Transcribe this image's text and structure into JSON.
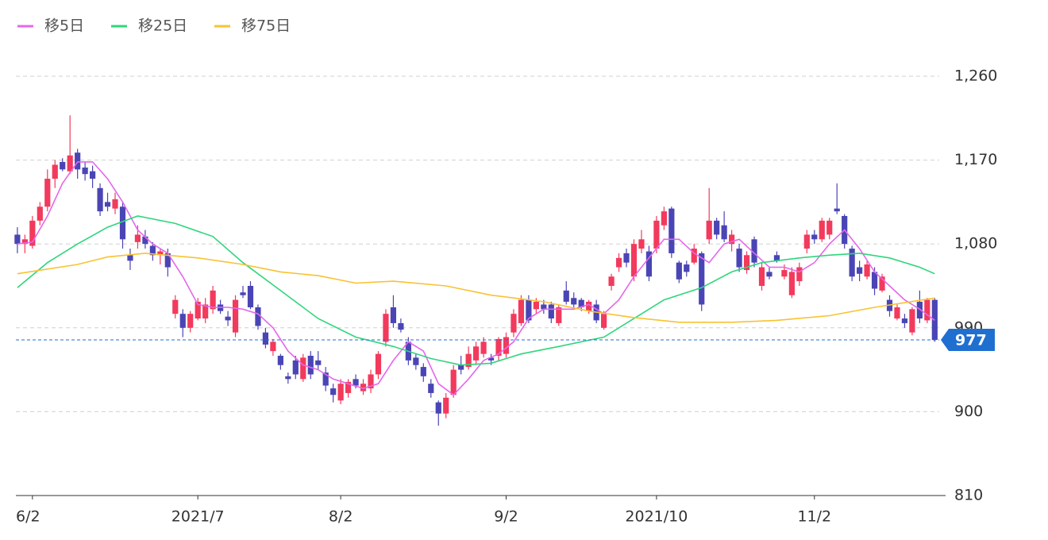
{
  "chart_data": {
    "type": "candlestick",
    "up_color": "#f23a5c",
    "down_color": "#4a45b5",
    "last_color": "#1f6fd1",
    "xlim": [
      -0.2,
      122.6
    ],
    "ylim": [
      810,
      1260
    ],
    "yticks": [
      {
        "value": 810,
        "label": "810"
      },
      {
        "value": 900,
        "label": "900"
      },
      {
        "value": 990,
        "label": "990"
      },
      {
        "value": 1080,
        "label": "1,080"
      },
      {
        "value": 1170,
        "label": "1,170"
      },
      {
        "value": 1260,
        "label": "1,260"
      }
    ],
    "xticks": [
      {
        "value": 2,
        "label": "6/2"
      },
      {
        "value": 24,
        "label": "2021/7"
      },
      {
        "value": 43,
        "label": "8/2"
      },
      {
        "value": 65,
        "label": "9/2"
      },
      {
        "value": 85,
        "label": "2021/10"
      },
      {
        "value": 106,
        "label": "11/2"
      }
    ],
    "grid": true,
    "candles": [
      [
        1090,
        1098,
        1070,
        1080
      ],
      [
        1080,
        1090,
        1070,
        1085
      ],
      [
        1078,
        1110,
        1075,
        1105
      ],
      [
        1105,
        1125,
        1100,
        1120
      ],
      [
        1120,
        1160,
        1115,
        1150
      ],
      [
        1150,
        1170,
        1140,
        1165
      ],
      [
        1168,
        1172,
        1158,
        1160
      ],
      [
        1158,
        1218,
        1155,
        1175
      ],
      [
        1178,
        1182,
        1150,
        1160
      ],
      [
        1162,
        1168,
        1148,
        1155
      ],
      [
        1158,
        1164,
        1140,
        1150
      ],
      [
        1140,
        1145,
        1110,
        1115
      ],
      [
        1125,
        1135,
        1115,
        1120
      ],
      [
        1118,
        1135,
        1112,
        1128
      ],
      [
        1120,
        1125,
        1075,
        1085
      ],
      [
        1068,
        1075,
        1052,
        1062
      ],
      [
        1082,
        1100,
        1075,
        1090
      ],
      [
        1088,
        1095,
        1075,
        1080
      ],
      [
        1078,
        1082,
        1062,
        1068
      ],
      [
        1068,
        1075,
        1058,
        1072
      ],
      [
        1070,
        1075,
        1045,
        1055
      ],
      [
        1005,
        1025,
        1000,
        1020
      ],
      [
        1005,
        1010,
        980,
        990
      ],
      [
        990,
        1008,
        985,
        1005
      ],
      [
        1000,
        1022,
        998,
        1018
      ],
      [
        1000,
        1022,
        995,
        1015
      ],
      [
        1010,
        1035,
        1005,
        1030
      ],
      [
        1015,
        1020,
        1005,
        1008
      ],
      [
        1002,
        1008,
        992,
        998
      ],
      [
        985,
        1025,
        980,
        1020
      ],
      [
        1028,
        1035,
        1022,
        1025
      ],
      [
        1035,
        1040,
        1010,
        1012
      ],
      [
        1012,
        1015,
        988,
        992
      ],
      [
        985,
        990,
        968,
        972
      ],
      [
        965,
        978,
        960,
        975
      ],
      [
        960,
        962,
        945,
        950
      ],
      [
        938,
        942,
        930,
        935
      ],
      [
        955,
        960,
        935,
        940
      ],
      [
        935,
        962,
        932,
        958
      ],
      [
        960,
        965,
        935,
        940
      ],
      [
        955,
        965,
        945,
        950
      ],
      [
        942,
        948,
        922,
        928
      ],
      [
        925,
        930,
        910,
        918
      ],
      [
        912,
        935,
        908,
        930
      ],
      [
        920,
        935,
        915,
        932
      ],
      [
        935,
        940,
        925,
        928
      ],
      [
        922,
        935,
        918,
        930
      ],
      [
        925,
        945,
        920,
        940
      ],
      [
        940,
        965,
        935,
        962
      ],
      [
        975,
        1010,
        970,
        1005
      ],
      [
        1012,
        1025,
        990,
        995
      ],
      [
        995,
        1000,
        985,
        988
      ],
      [
        975,
        980,
        950,
        955
      ],
      [
        958,
        962,
        945,
        950
      ],
      [
        948,
        952,
        932,
        938
      ],
      [
        930,
        935,
        915,
        920
      ],
      [
        910,
        912,
        885,
        898
      ],
      [
        898,
        920,
        893,
        915
      ],
      [
        918,
        950,
        915,
        945
      ],
      [
        950,
        960,
        940,
        945
      ],
      [
        948,
        970,
        945,
        962
      ],
      [
        955,
        975,
        950,
        970
      ],
      [
        962,
        980,
        958,
        975
      ],
      [
        958,
        962,
        950,
        955
      ],
      [
        960,
        980,
        955,
        978
      ],
      [
        962,
        985,
        958,
        980
      ],
      [
        985,
        1010,
        980,
        1005
      ],
      [
        995,
        1025,
        992,
        1020
      ],
      [
        1020,
        1025,
        995,
        998
      ],
      [
        1010,
        1022,
        1005,
        1018
      ],
      [
        1015,
        1020,
        1005,
        1010
      ],
      [
        1015,
        1018,
        995,
        1000
      ],
      [
        995,
        1015,
        992,
        1012
      ],
      [
        1030,
        1040,
        1015,
        1018
      ],
      [
        1022,
        1028,
        1012,
        1015
      ],
      [
        1020,
        1022,
        1008,
        1012
      ],
      [
        1008,
        1020,
        1005,
        1018
      ],
      [
        1015,
        1020,
        995,
        998
      ],
      [
        990,
        1008,
        988,
        1005
      ],
      [
        1035,
        1048,
        1030,
        1045
      ],
      [
        1055,
        1070,
        1050,
        1065
      ],
      [
        1070,
        1075,
        1055,
        1060
      ],
      [
        1045,
        1085,
        1040,
        1080
      ],
      [
        1075,
        1095,
        1070,
        1085
      ],
      [
        1072,
        1078,
        1040,
        1045
      ],
      [
        1075,
        1110,
        1070,
        1105
      ],
      [
        1100,
        1120,
        1095,
        1115
      ],
      [
        1118,
        1120,
        1065,
        1070
      ],
      [
        1060,
        1062,
        1038,
        1042
      ],
      [
        1058,
        1062,
        1045,
        1050
      ],
      [
        1060,
        1080,
        1058,
        1075
      ],
      [
        1070,
        1072,
        1008,
        1015
      ],
      [
        1085,
        1140,
        1080,
        1105
      ],
      [
        1105,
        1108,
        1085,
        1090
      ],
      [
        1100,
        1115,
        1082,
        1085
      ],
      [
        1080,
        1095,
        1072,
        1090
      ],
      [
        1075,
        1080,
        1050,
        1055
      ],
      [
        1052,
        1072,
        1048,
        1068
      ],
      [
        1085,
        1088,
        1055,
        1060
      ],
      [
        1035,
        1060,
        1030,
        1055
      ],
      [
        1050,
        1055,
        1042,
        1045
      ],
      [
        1068,
        1072,
        1060,
        1062
      ],
      [
        1045,
        1058,
        1042,
        1052
      ],
      [
        1025,
        1055,
        1022,
        1050
      ],
      [
        1040,
        1060,
        1035,
        1055
      ],
      [
        1075,
        1095,
        1070,
        1090
      ],
      [
        1090,
        1095,
        1080,
        1085
      ],
      [
        1085,
        1108,
        1082,
        1105
      ],
      [
        1090,
        1108,
        1085,
        1105
      ],
      [
        1118,
        1145,
        1112,
        1115
      ],
      [
        1110,
        1112,
        1075,
        1080
      ],
      [
        1075,
        1078,
        1040,
        1045
      ],
      [
        1055,
        1062,
        1040,
        1048
      ],
      [
        1045,
        1062,
        1042,
        1058
      ],
      [
        1050,
        1055,
        1025,
        1032
      ],
      [
        1030,
        1048,
        1028,
        1045
      ],
      [
        1020,
        1025,
        1002,
        1008
      ],
      [
        1000,
        1015,
        998,
        1012
      ],
      [
        1000,
        1005,
        990,
        995
      ],
      [
        985,
        1012,
        982,
        1010
      ],
      [
        1018,
        1030,
        995,
        1000
      ],
      [
        998,
        1022,
        995,
        1020
      ],
      [
        1020,
        1022,
        975,
        977
      ]
    ],
    "series": [
      {
        "name": "移5日",
        "color": "#e467ec",
        "x": [
          0,
          2,
          4,
          6,
          8,
          10,
          12,
          14,
          16,
          18,
          20,
          22,
          24,
          26,
          28,
          30,
          32,
          34,
          36,
          38,
          40,
          42,
          44,
          46,
          48,
          50,
          52,
          54,
          56,
          58,
          60,
          62,
          64,
          66,
          68,
          70,
          72,
          74,
          76,
          78,
          80,
          82,
          84,
          86,
          88,
          90,
          92,
          94,
          96,
          98,
          100,
          102,
          104,
          106,
          108,
          110,
          112,
          114,
          116,
          118,
          120,
          122
        ],
        "values": [
          1080,
          1082,
          1110,
          1145,
          1168,
          1168,
          1150,
          1125,
          1095,
          1080,
          1070,
          1045,
          1015,
          1012,
          1012,
          1010,
          1005,
          990,
          965,
          950,
          945,
          935,
          930,
          925,
          930,
          955,
          975,
          965,
          930,
          918,
          935,
          955,
          962,
          975,
          1000,
          1010,
          1010,
          1010,
          1015,
          1005,
          1020,
          1045,
          1065,
          1085,
          1085,
          1070,
          1060,
          1080,
          1085,
          1070,
          1055,
          1055,
          1050,
          1060,
          1080,
          1095,
          1075,
          1050,
          1035,
          1020,
          1010,
          998
        ]
      },
      {
        "name": "移25日",
        "color": "#2fd67c",
        "x": [
          0,
          4,
          8,
          12,
          16,
          21,
          26,
          30,
          35,
          40,
          45,
          50,
          55,
          59,
          63,
          67,
          72,
          78,
          82,
          86,
          91,
          95,
          99,
          104,
          108,
          112,
          116,
          120,
          122
        ],
        "values": [
          1033,
          1060,
          1080,
          1098,
          1110,
          1102,
          1088,
          1060,
          1030,
          1000,
          980,
          970,
          957,
          950,
          952,
          962,
          970,
          980,
          1000,
          1020,
          1033,
          1050,
          1060,
          1065,
          1068,
          1070,
          1065,
          1055,
          1048
        ]
      },
      {
        "name": "移75日",
        "color": "#f8c232",
        "x": [
          0,
          8,
          12,
          17,
          24,
          30,
          35,
          40,
          45,
          50,
          57,
          63,
          70,
          76,
          82,
          88,
          95,
          101,
          108,
          114,
          122
        ],
        "values": [
          1048,
          1058,
          1066,
          1070,
          1065,
          1058,
          1050,
          1046,
          1038,
          1040,
          1035,
          1025,
          1018,
          1008,
          1001,
          996,
          996,
          998,
          1003,
          1012,
          1022
        ]
      }
    ]
  }
}
